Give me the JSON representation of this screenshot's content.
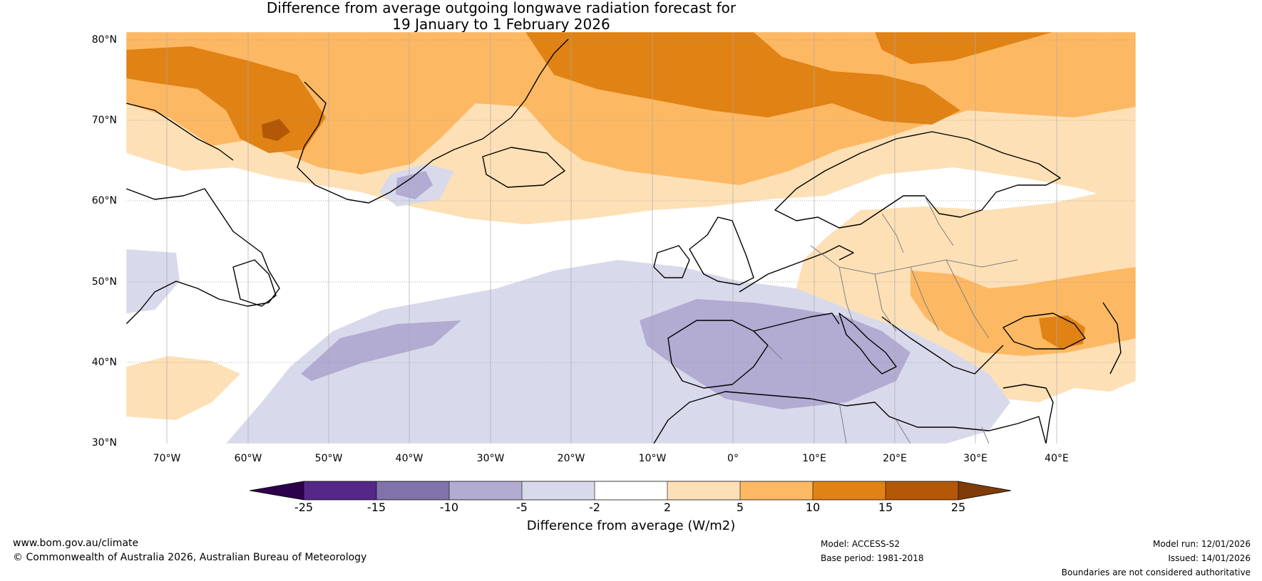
{
  "title": {
    "line1": "Difference from average outgoing longwave radiation forecast for",
    "line2": "19 January to 1 February 2026"
  },
  "axes": {
    "lat_labels": [
      "80°N",
      "70°N",
      "60°N",
      "50°N",
      "40°N",
      "30°N"
    ],
    "lon_labels": [
      "70°W",
      "60°W",
      "50°W",
      "40°W",
      "30°W",
      "20°W",
      "10°W",
      "0°",
      "10°E",
      "20°E",
      "30°E",
      "40°E"
    ]
  },
  "colorbar": {
    "title": "Difference from average (W/m2)",
    "ticks": [
      "-25",
      "-15",
      "-10",
      "-5",
      "-2",
      "2",
      "5",
      "10",
      "15",
      "25"
    ],
    "colors": {
      "below_min": "#2d004b",
      "c1": "#542788",
      "c2": "#8073ac",
      "c3": "#b2abd2",
      "c4": "#d8daeb",
      "c5": "#ffffff",
      "c6": "#fee0b6",
      "c7": "#fdb863",
      "c8": "#e08214",
      "c9": "#b35806",
      "above_max": "#7f3b08"
    }
  },
  "footer": {
    "website": "www.bom.gov.au/climate",
    "copyright": "© Commonwealth of Australia 2026, Australian Bureau of Meteorology",
    "model": "Model: ACCESS-S2",
    "base_period": "Base period: 1981-2018",
    "model_run": "Model run: 12/01/2026",
    "issued": "Issued: 14/01/2026",
    "disclaimer": "Boundaries are not considered authoritative"
  }
}
